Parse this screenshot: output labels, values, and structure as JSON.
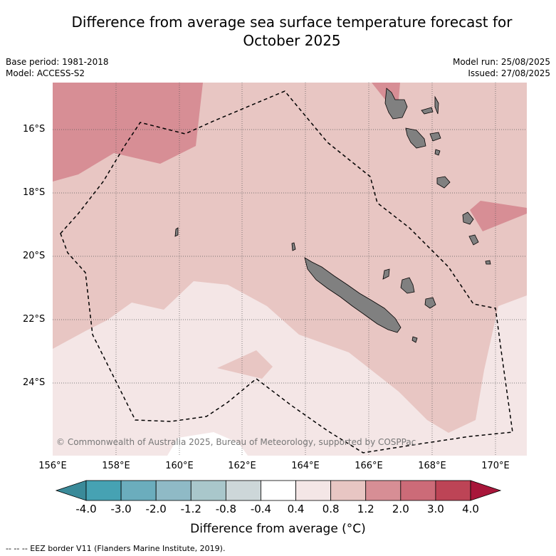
{
  "title": {
    "line1": "Difference from average sea surface temperature forecast for",
    "line2": "October 2025"
  },
  "meta": {
    "base_period": "Base period: 1981-2018",
    "model": "Model: ACCESS-S2",
    "model_run": "Model run: 25/08/2025",
    "issued": "Issued: 27/08/2025"
  },
  "map": {
    "copyright": "© Commonwealth of Australia 2025, Bureau of Meteorology, supported by COSPPac",
    "lat_labels": [
      "16°S",
      "18°S",
      "20°S",
      "22°S",
      "24°S"
    ],
    "lon_labels": [
      "156°E",
      "158°E",
      "160°E",
      "162°E",
      "164°E",
      "166°E",
      "168°E",
      "170°E"
    ],
    "colors": {
      "band_0_4_to_0_8": "#f4e6e6",
      "band_0_8_to_1_2": "#e8c6c3",
      "band_1_2_to_2_0": "#d78e95",
      "land": "#808080"
    }
  },
  "colorbar": {
    "ticks": [
      "-4.0",
      "-3.0",
      "-2.0",
      "-1.2",
      "-0.8",
      "-0.4",
      "0.4",
      "0.8",
      "1.2",
      "2.0",
      "3.0",
      "4.0"
    ],
    "colors": [
      "#3a8a99",
      "#46a2b3",
      "#6badbd",
      "#8fbac6",
      "#a9c7cb",
      "#cdd7d9",
      "#ffffff",
      "#f4e6e6",
      "#e8c6c3",
      "#d78e95",
      "#cc6b78",
      "#bd4456",
      "#a8163a"
    ],
    "label": "Difference from average (°C)"
  },
  "footnote": "--  --  -- EEZ border V11 (Flanders Marine Institute, 2019)."
}
